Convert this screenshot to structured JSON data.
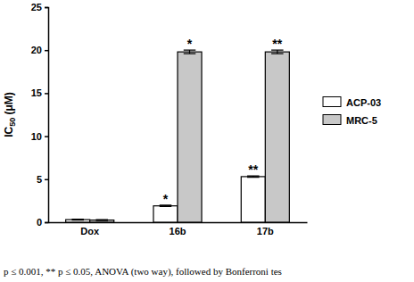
{
  "chart_data": {
    "type": "bar",
    "categories": [
      "Dox",
      "16b",
      "17b"
    ],
    "series": [
      {
        "name": "ACP-03",
        "color": "#ffffff",
        "values": [
          0.3,
          1.9,
          5.3
        ],
        "errors": [
          0.05,
          0.08,
          0.08
        ]
      },
      {
        "name": "MRC-5",
        "color": "#c8c8c8",
        "values": [
          0.25,
          19.8,
          19.8
        ],
        "errors": [
          0.05,
          0.2,
          0.2
        ]
      }
    ],
    "y_label": "IC50 (μM)",
    "ylim": [
      0,
      25
    ],
    "yticks": [
      0,
      5,
      10,
      15,
      20,
      25
    ],
    "legend": "right",
    "annotations": [
      {
        "text": "*",
        "category": "16b",
        "series": "ACP-03"
      },
      {
        "text": "*",
        "category": "16b",
        "series": "MRC-5"
      },
      {
        "text": "**",
        "category": "17b",
        "series": "ACP-03"
      },
      {
        "text": "**",
        "category": "17b",
        "series": "MRC-5"
      }
    ],
    "note": "p ≤ 0.001, ** p ≤ 0.05, ANOVA (two way), followed by Bonferroni tes"
  }
}
